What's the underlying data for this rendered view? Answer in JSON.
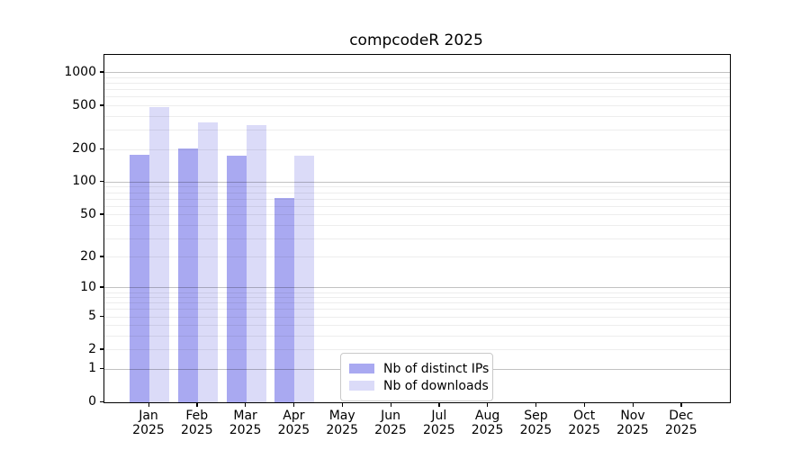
{
  "chart_data": {
    "type": "bar",
    "title": "compcodeR 2025",
    "categories": [
      "Jan",
      "Feb",
      "Mar",
      "Apr",
      "May",
      "Jun",
      "Jul",
      "Aug",
      "Sep",
      "Oct",
      "Nov",
      "Dec"
    ],
    "x_tick_year": "2025",
    "series": [
      {
        "name": "Nb of distinct IPs",
        "color": "#a9a9f1",
        "values": [
          180,
          203,
          174,
          72,
          null,
          null,
          null,
          null,
          null,
          null,
          null,
          null
        ]
      },
      {
        "name": "Nb of downloads",
        "color": "#dbdbf8",
        "values": [
          490,
          352,
          336,
          174,
          null,
          null,
          null,
          null,
          null,
          null,
          null,
          null
        ]
      }
    ],
    "y_scale": "log10(x+1)",
    "y_tick_values": [
      0,
      1,
      2,
      5,
      10,
      20,
      50,
      100,
      200,
      500,
      1000
    ],
    "y_tick_labels": [
      "0",
      "1",
      "2",
      "5",
      "10",
      "20",
      "50",
      "100",
      "200",
      "500",
      "1000"
    ],
    "grid_major_values": [
      1,
      10,
      100,
      1000
    ],
    "grid_minor_values": [
      2,
      3,
      4,
      5,
      6,
      7,
      8,
      9,
      20,
      30,
      40,
      50,
      60,
      70,
      80,
      90,
      200,
      300,
      400,
      500,
      600,
      700,
      800,
      900
    ],
    "ylim": [
      0,
      1460
    ],
    "grid": true,
    "legend_position": "lower-center"
  },
  "colors": {
    "background": "#ffffff",
    "axis": "#000000",
    "text": "#000000",
    "grid_major": "rgba(0,0,0,0.24)",
    "grid_minor": "rgba(0,0,0,0.07)"
  }
}
